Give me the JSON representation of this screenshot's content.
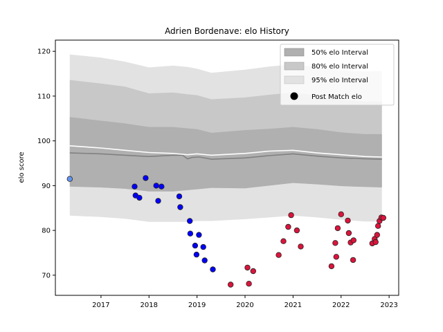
{
  "chart_data": {
    "type": "scatter",
    "title": "Adrien Bordenave: elo History",
    "xlabel": "",
    "ylabel": "elo score",
    "xlim": [
      2016.05,
      2023.2
    ],
    "ylim": [
      65.5,
      122.5
    ],
    "xticks": [
      2017,
      2018,
      2019,
      2020,
      2021,
      2022,
      2023
    ],
    "yticks": [
      70,
      80,
      90,
      100,
      110,
      120
    ],
    "grid": false,
    "legend": {
      "placement": "top-right",
      "entries": [
        {
          "label": "50% elo Interval",
          "color": "#b0b0b0"
        },
        {
          "label": "80% elo Interval",
          "color": "#c8c8c8"
        },
        {
          "label": "95% elo Interval",
          "color": "#e2e2e2"
        },
        {
          "label": "Post Match elo",
          "color": "#000000"
        }
      ]
    },
    "bands": {
      "x": [
        2016.35,
        2017.0,
        2017.5,
        2018.0,
        2018.5,
        2018.8,
        2019.0,
        2019.3,
        2020.0,
        2020.5,
        2021.0,
        2021.5,
        2022.0,
        2022.5,
        2022.85
      ],
      "p95_upper": [
        119.3,
        118.6,
        117.7,
        116.4,
        116.8,
        116.5,
        116.1,
        115.2,
        115.9,
        116.6,
        117.1,
        116.5,
        115.8,
        115.5,
        115.6
      ],
      "p80_upper": [
        113.6,
        112.8,
        112.1,
        110.6,
        110.8,
        110.4,
        110.2,
        109.3,
        109.7,
        110.3,
        110.8,
        110.1,
        109.2,
        108.8,
        108.8
      ],
      "p50_upper": [
        105.3,
        104.5,
        103.9,
        103.1,
        103.1,
        102.8,
        102.6,
        101.8,
        102.4,
        102.7,
        103.1,
        102.6,
        101.9,
        101.5,
        101.5
      ],
      "p50_lower": [
        89.8,
        89.6,
        89.3,
        88.7,
        88.7,
        89.0,
        89.2,
        89.5,
        89.4,
        90.0,
        90.6,
        90.3,
        89.9,
        89.7,
        89.6
      ],
      "p80_lower": [
        89.8,
        89.6,
        89.3,
        88.7,
        88.7,
        89.0,
        89.2,
        89.5,
        89.4,
        90.0,
        90.6,
        90.3,
        89.9,
        89.7,
        89.6
      ],
      "p95_lower": [
        83.3,
        83.0,
        82.6,
        81.9,
        81.9,
        81.9,
        82.1,
        82.1,
        82.5,
        82.9,
        83.3,
        82.9,
        82.4,
        82.0,
        82.0
      ]
    },
    "median_line": {
      "x": [
        2016.35,
        2017.0,
        2017.5,
        2018.0,
        2018.5,
        2018.7,
        2018.8,
        2018.9,
        2019.05,
        2019.3,
        2020.0,
        2020.5,
        2021.0,
        2021.3,
        2021.5,
        2022.0,
        2022.5,
        2022.85
      ],
      "y": [
        97.3,
        97.1,
        96.8,
        96.5,
        96.8,
        96.8,
        96.0,
        96.3,
        96.4,
        95.9,
        96.2,
        96.7,
        97.1,
        96.8,
        96.6,
        96.2,
        96.0,
        95.9
      ],
      "color": "#808080"
    },
    "mean_line": {
      "x": [
        2016.35,
        2017.0,
        2017.5,
        2018.0,
        2018.5,
        2018.8,
        2019.0,
        2019.3,
        2020.0,
        2020.5,
        2021.0,
        2021.5,
        2022.0,
        2022.5,
        2022.85
      ],
      "y": [
        98.9,
        98.4,
        97.9,
        97.4,
        97.2,
        96.9,
        97.1,
        96.8,
        97.2,
        97.7,
        97.9,
        97.3,
        96.9,
        96.5,
        96.4
      ],
      "color": "#ffffff"
    },
    "series": [
      {
        "color": "#6495ed",
        "x": [
          2016.35
        ],
        "y": [
          91.5
        ]
      },
      {
        "color": "#0000ff",
        "x": [
          2017.7,
          2017.72,
          2017.8,
          2017.93,
          2018.15,
          2018.19,
          2018.26,
          2018.63,
          2018.65,
          2018.85,
          2018.86,
          2018.96,
          2018.99,
          2019.04,
          2019.13,
          2019.16,
          2019.33
        ],
        "y": [
          89.8,
          87.8,
          87.3,
          91.7,
          90.0,
          86.6,
          89.8,
          87.6,
          85.2,
          82.1,
          79.3,
          76.6,
          74.6,
          79.0,
          76.3,
          73.3,
          71.3
        ]
      },
      {
        "color": "#dc143c",
        "x": [
          2019.7,
          2020.05,
          2020.08,
          2020.17,
          2020.7,
          2020.8,
          2020.9,
          2020.96,
          2021.08,
          2021.16,
          2021.8,
          2021.88,
          2021.9,
          2021.93,
          2022.0,
          2022.14,
          2022.16,
          2022.2,
          2022.25,
          2022.26,
          2022.65,
          2022.7,
          2022.72,
          2022.75,
          2022.77,
          2022.8,
          2022.84,
          2022.88
        ],
        "y": [
          67.9,
          71.7,
          68.1,
          70.9,
          74.5,
          77.6,
          80.8,
          83.4,
          80.0,
          76.4,
          72.0,
          77.2,
          74.1,
          80.5,
          83.6,
          82.2,
          79.4,
          77.3,
          73.4,
          77.8,
          77.1,
          78.1,
          77.4,
          79.0,
          81.0,
          82.1,
          82.9,
          82.8
        ]
      }
    ]
  }
}
